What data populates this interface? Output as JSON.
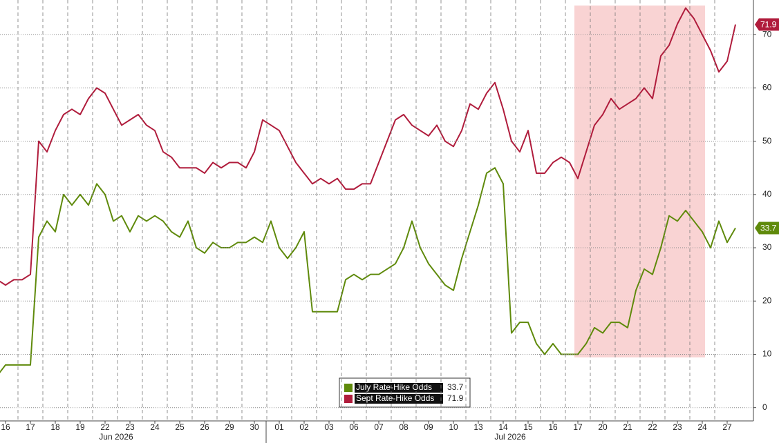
{
  "chart_data": {
    "type": "line",
    "categories": [
      null,
      "16",
      null,
      null,
      "17",
      null,
      null,
      "18",
      null,
      null,
      "19",
      null,
      null,
      "22",
      null,
      null,
      "23",
      null,
      null,
      "24",
      null,
      null,
      "25",
      null,
      null,
      "26",
      null,
      null,
      "29",
      null,
      null,
      "30",
      null,
      null,
      "01",
      null,
      null,
      "02",
      null,
      null,
      "03",
      null,
      null,
      "06",
      null,
      null,
      "07",
      null,
      null,
      "08",
      null,
      null,
      "09",
      null,
      null,
      "10",
      null,
      null,
      "13",
      null,
      null,
      "14",
      null,
      null,
      "15",
      null,
      null,
      "16",
      null,
      null,
      "17",
      null,
      null,
      "20",
      null,
      null,
      "21",
      null,
      null,
      "22",
      null,
      null,
      "23",
      null,
      null,
      "24",
      null,
      null,
      "27",
      null
    ],
    "months": [
      "Jun 2026",
      "Jul 2026"
    ],
    "series": [
      {
        "name": "July Rate-Hike Odds",
        "color": "#5f8a0b",
        "values": [
          6,
          8,
          8,
          8,
          8,
          32,
          35,
          33,
          40,
          38,
          40,
          38,
          42,
          40,
          35,
          36,
          33,
          36,
          35,
          36,
          35,
          33,
          32,
          35,
          30,
          29,
          31,
          30,
          30,
          31,
          31,
          32,
          31,
          35,
          30,
          28,
          30,
          33,
          18,
          18,
          18,
          18,
          24,
          25,
          24,
          25,
          25,
          26,
          27,
          30,
          35,
          30,
          27,
          25,
          23,
          22,
          28,
          33,
          38,
          44,
          45,
          42,
          14,
          16,
          16,
          12,
          10,
          12,
          10,
          10,
          10,
          12,
          15,
          14,
          16,
          16,
          15,
          22,
          26,
          25,
          30,
          36,
          35,
          37,
          35,
          33,
          30,
          35,
          31,
          33.7
        ]
      },
      {
        "name": "Sept Rate-Hike Odds",
        "color": "#b01c3c",
        "values": [
          24,
          23,
          24,
          24,
          25,
          50,
          48,
          52,
          55,
          56,
          55,
          58,
          60,
          59,
          56,
          53,
          54,
          55,
          53,
          52,
          48,
          47,
          45,
          45,
          45,
          44,
          46,
          45,
          46,
          46,
          45,
          48,
          54,
          53,
          52,
          49,
          46,
          44,
          42,
          43,
          42,
          43,
          41,
          41,
          42,
          42,
          46,
          50,
          54,
          55,
          53,
          52,
          51,
          53,
          50,
          49,
          52,
          57,
          56,
          59,
          61,
          56,
          50,
          48,
          52,
          44,
          44,
          46,
          47,
          46,
          43,
          48,
          53,
          55,
          58,
          56,
          57,
          58,
          60,
          58,
          66,
          68,
          72,
          75,
          73,
          70,
          67,
          63,
          65,
          71.9
        ]
      }
    ],
    "ylim": [
      -2.5,
      76.5
    ],
    "yticks": [
      0,
      10,
      20,
      30,
      40,
      50,
      60,
      70
    ],
    "grid": true
  }
}
